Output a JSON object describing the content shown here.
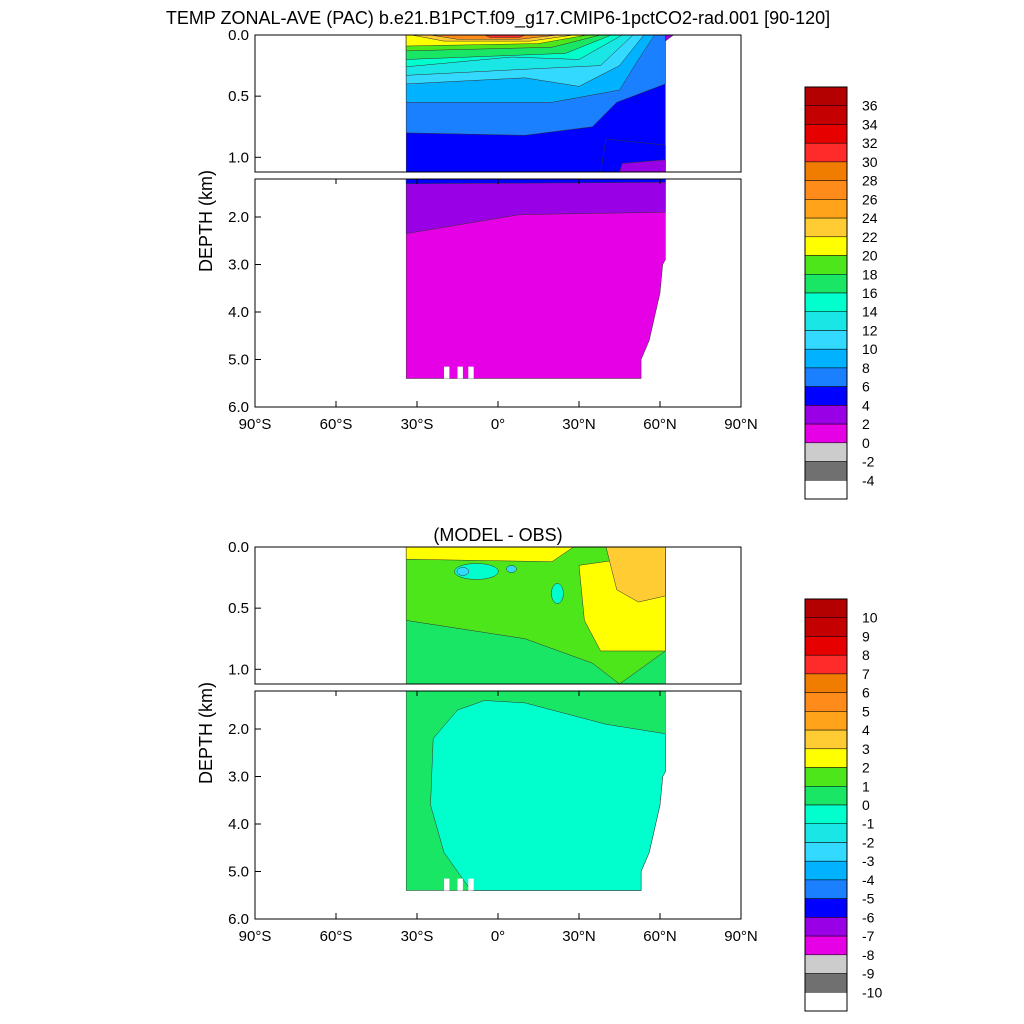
{
  "title": "TEMP ZONAL-AVE (PAC) b.e21.B1PCT.f09_g17.CMIP6-1pctCO2-rad.001 [90-120]",
  "panels": [
    {
      "subtitle": "",
      "ylabel": "DEPTH (km)"
    },
    {
      "subtitle": "(MODEL - OBS)",
      "ylabel": "DEPTH (km)"
    }
  ],
  "chart_data": [
    {
      "type": "heatmap",
      "title": "TEMP ZONAL-AVE (PAC) b.e21.B1PCT.f09_g17.CMIP6-1pctCO2-rad.001 [90-120]",
      "xlabel": "",
      "ylabel": "DEPTH (km)",
      "xlim": [
        -90,
        90
      ],
      "ylim": [
        6.0,
        0.0
      ],
      "x_ticks": [
        "90°S",
        "60°S",
        "30°S",
        "0°",
        "30°N",
        "60°N",
        "90°N"
      ],
      "y_ticks_upper": [
        "0.0",
        "0.5",
        "1.0"
      ],
      "y_ticks_lower": [
        "2.0",
        "3.0",
        "4.0",
        "5.0",
        "6.0"
      ],
      "data_lat_range": [
        -34,
        62
      ],
      "colorbar": {
        "labels": [
          "36",
          "34",
          "32",
          "30",
          "28",
          "26",
          "24",
          "22",
          "20",
          "18",
          "16",
          "14",
          "12",
          "10",
          "8",
          "6",
          "4",
          "2",
          "0",
          "-2",
          "-4"
        ],
        "colors": [
          "#b30000",
          "#c40000",
          "#e60000",
          "#ff2b2b",
          "#f07c00",
          "#ff8c1a",
          "#ffa31a",
          "#ffcc33",
          "#ffff00",
          "#4de61a",
          "#1ae666",
          "#00ffcc",
          "#1ae6e6",
          "#33d9ff",
          "#00b2ff",
          "#1a80ff",
          "#0000ff",
          "#9900e6",
          "#e600e6",
          "#cccccc",
          "#707070",
          "#ffffff"
        ]
      }
    },
    {
      "type": "heatmap",
      "title": "(MODEL - OBS)",
      "xlabel": "",
      "ylabel": "DEPTH (km)",
      "xlim": [
        -90,
        90
      ],
      "ylim": [
        6.0,
        0.0
      ],
      "x_ticks": [
        "90°S",
        "60°S",
        "30°S",
        "0°",
        "30°N",
        "60°N",
        "90°N"
      ],
      "y_ticks_upper": [
        "0.0",
        "0.5",
        "1.0"
      ],
      "y_ticks_lower": [
        "2.0",
        "3.0",
        "4.0",
        "5.0",
        "6.0"
      ],
      "data_lat_range": [
        -34,
        62
      ],
      "colorbar": {
        "labels": [
          "10",
          "9",
          "8",
          "7",
          "6",
          "5",
          "4",
          "3",
          "2",
          "1",
          "0",
          "-1",
          "-2",
          "-3",
          "-4",
          "-5",
          "-6",
          "-7",
          "-8",
          "-9",
          "-10"
        ],
        "colors": [
          "#b30000",
          "#c40000",
          "#e60000",
          "#ff2b2b",
          "#f07c00",
          "#ff8c1a",
          "#ffa31a",
          "#ffcc33",
          "#ffff00",
          "#4de61a",
          "#1ae666",
          "#00ffcc",
          "#1ae6e6",
          "#33d9ff",
          "#00b2ff",
          "#1a80ff",
          "#0000ff",
          "#9900e6",
          "#e600e6",
          "#cccccc",
          "#707070",
          "#ffffff"
        ]
      }
    }
  ]
}
